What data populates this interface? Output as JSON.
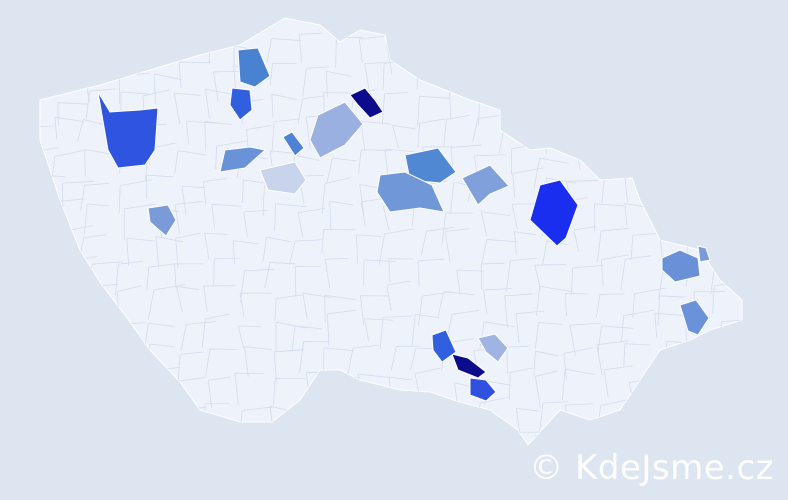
{
  "map": {
    "base_fill": "#eef2fa",
    "border_color": "#ffffff",
    "background": "#dde5f1",
    "highlighted_region_colors": [
      "#0b0b8c",
      "#0b0b8c",
      "#1a2ef0",
      "#2f55e0",
      "#3060e0",
      "#4a82d2",
      "#4f82d6",
      "#6a92d8",
      "#9ab0e0",
      "#c8d4ec",
      "#5088d4",
      "#7098d8",
      "#80a0dc",
      "#7a9ad8",
      "#6a90d8",
      "#7a9ad8",
      "#6a92d8",
      "#3060e0",
      "#a0b4e4",
      "#3050e0"
    ]
  },
  "watermark": "© KdeJsme.cz"
}
